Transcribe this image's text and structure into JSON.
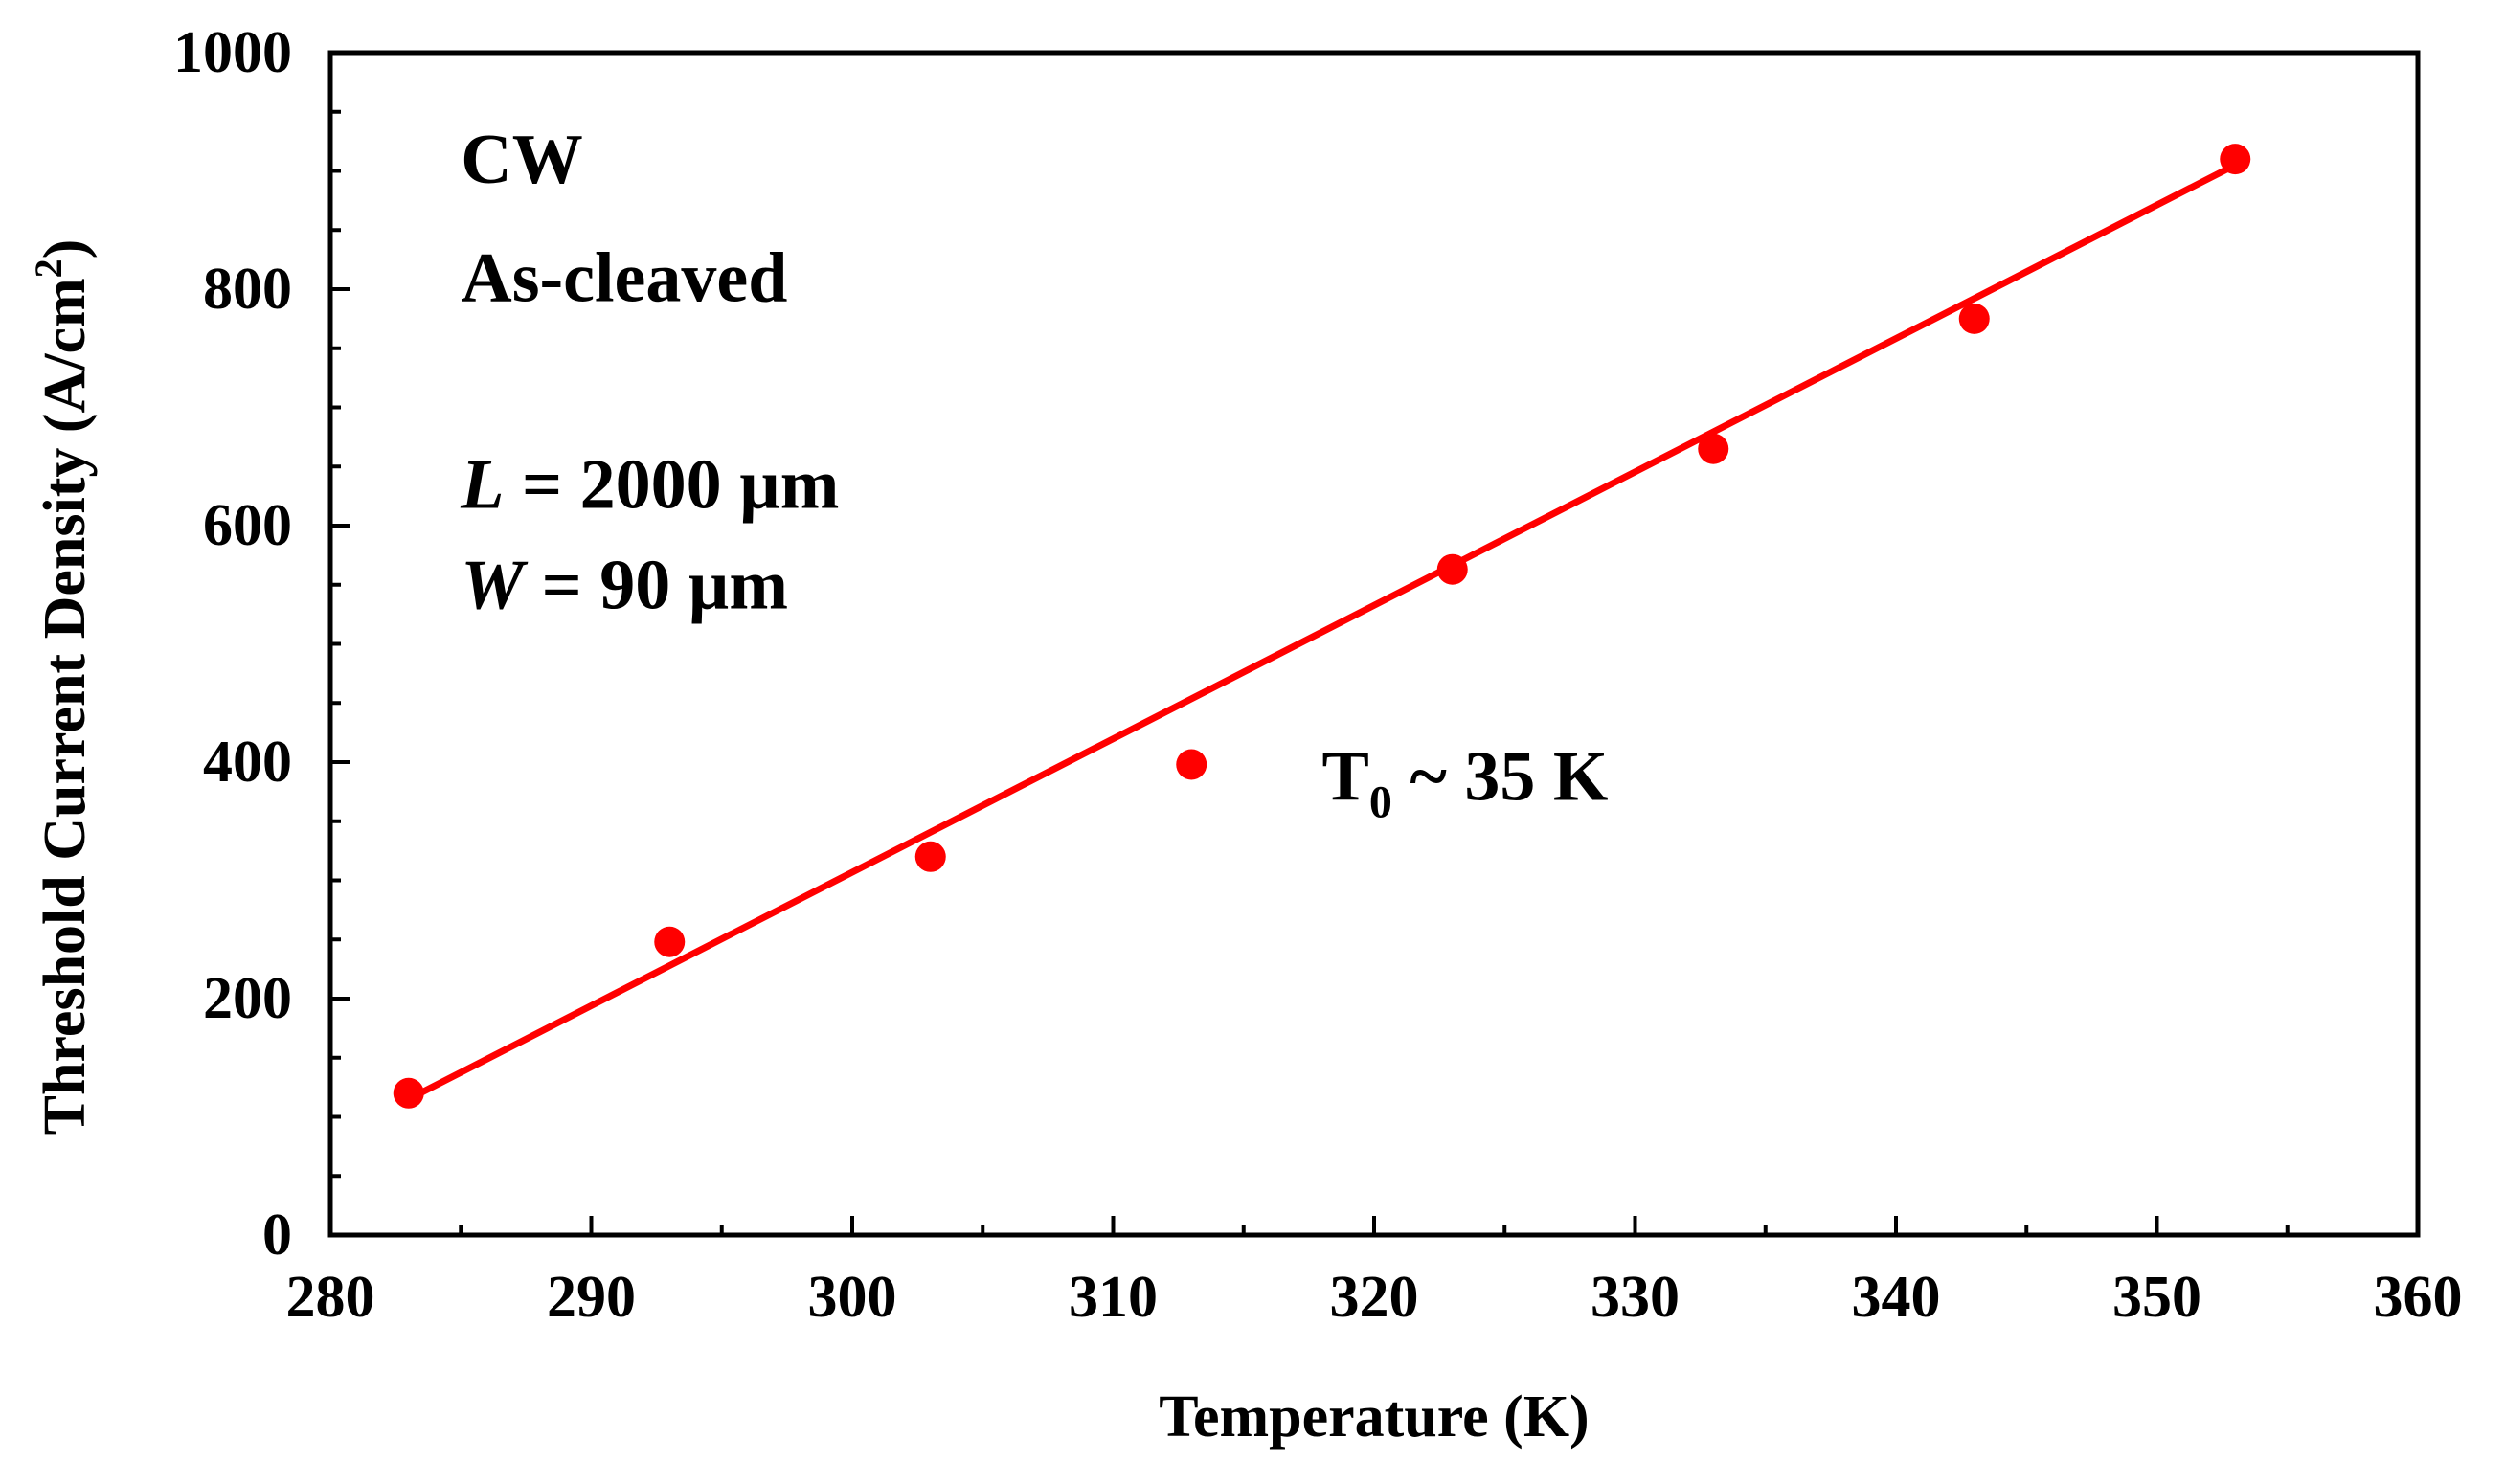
{
  "chart_data": {
    "type": "scatter",
    "title": "",
    "xlabel": "Temperature (K)",
    "ylabel": "Threshold Current Density (A/cm",
    "ylabel_sup": "2",
    "ylabel_close": ")",
    "xlim": [
      280,
      360
    ],
    "ylim": [
      0,
      1000
    ],
    "xticks": [
      280,
      290,
      300,
      310,
      320,
      330,
      340,
      350,
      360
    ],
    "yticks": [
      0,
      200,
      400,
      600,
      800,
      1000
    ],
    "x_minor_step": 5,
    "y_minor_step": 50,
    "grid": false,
    "series": [
      {
        "name": "Measured",
        "kind": "points",
        "color": "#ff0000",
        "x": [
          283,
          293,
          303,
          313,
          323,
          333,
          343,
          353
        ],
        "y": [
          120,
          248,
          320,
          398,
          563,
          665,
          775,
          910
        ]
      },
      {
        "name": "Linear fit",
        "kind": "line",
        "color": "#ff0000",
        "x": [
          283,
          353
        ],
        "y": [
          115,
          905
        ]
      }
    ],
    "annotations": [
      {
        "text": "CW",
        "x": 285,
        "y": 890,
        "italic_prefix": ""
      },
      {
        "text": "As-cleaved",
        "x": 285,
        "y": 790,
        "italic_prefix": ""
      },
      {
        "text": " = 2000 µm",
        "x": 285,
        "y": 615,
        "italic_prefix": "L"
      },
      {
        "text": " = 90 µm",
        "x": 285,
        "y": 530,
        "italic_prefix": "W"
      }
    ],
    "t0_label": {
      "base": "T",
      "sub": "0",
      "rest": " ~ 35 K",
      "x": 318,
      "y": 368
    }
  }
}
